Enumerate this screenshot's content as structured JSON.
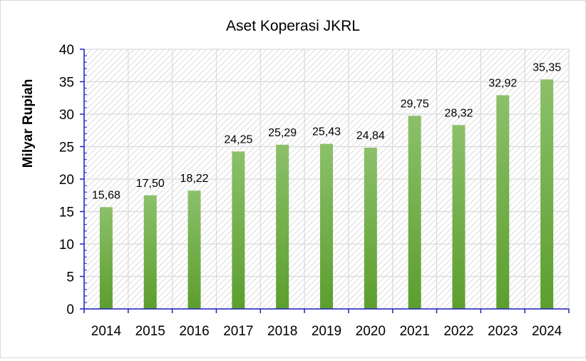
{
  "chart_data": {
    "type": "bar",
    "title": "Aset Koperasi JKRL",
    "xlabel": "",
    "ylabel": "Milyar Rupiah",
    "categories": [
      "2014",
      "2015",
      "2016",
      "2017",
      "2018",
      "2019",
      "2020",
      "2021",
      "2022",
      "2023",
      "2024"
    ],
    "values": [
      15.68,
      17.5,
      18.22,
      24.25,
      25.29,
      25.43,
      24.84,
      29.75,
      28.32,
      32.92,
      35.35
    ],
    "data_labels": [
      "15,68",
      "17,50",
      "18,22",
      "24,25",
      "25,29",
      "25,43",
      "24,84",
      "29,75",
      "28,32",
      "32,92",
      "35,35"
    ],
    "ylim": [
      0,
      40
    ],
    "yticks": [
      "0",
      "5",
      "10",
      "15",
      "20",
      "25",
      "30",
      "35",
      "40"
    ],
    "ytick_values": [
      0,
      5,
      10,
      15,
      20,
      25,
      30,
      35,
      40
    ],
    "grid": true,
    "legend": "none",
    "colors": {
      "bar_top": "#8cc06a",
      "bar_bottom": "#5c9e2e",
      "axis": "#1f1fbf",
      "grid": "#d9d9d9",
      "hatch": "#dcdcdc"
    }
  }
}
